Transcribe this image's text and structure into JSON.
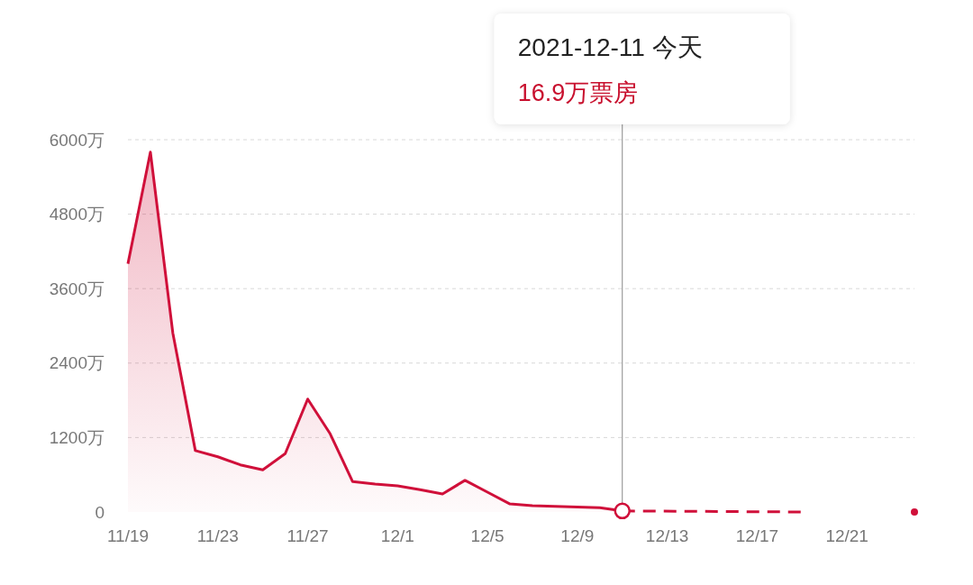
{
  "chart_data": {
    "type": "area",
    "x": [
      "2021-11-19",
      "2021-11-20",
      "2021-11-21",
      "2021-11-22",
      "2021-11-23",
      "2021-11-24",
      "2021-11-25",
      "2021-11-26",
      "2021-11-27",
      "2021-11-28",
      "2021-11-29",
      "2021-11-30",
      "2021-12-01",
      "2021-12-02",
      "2021-12-03",
      "2021-12-04",
      "2021-12-05",
      "2021-12-06",
      "2021-12-07",
      "2021-12-08",
      "2021-12-09",
      "2021-12-10",
      "2021-12-11"
    ],
    "series": [
      {
        "color": "#d0103a",
        "values": [
          4000,
          5800,
          2880,
          990,
          890,
          760,
          680,
          940,
          1820,
          1260,
          490,
          450,
          420,
          360,
          290,
          510,
          320,
          130,
          100,
          90,
          80,
          70,
          16.9
        ]
      },
      {
        "type": "line",
        "color": "#d0103a",
        "line_style": "dashed",
        "x": [
          "2021-12-11",
          "2021-12-19"
        ],
        "values": [
          16.9,
          0
        ]
      },
      {
        "type": "scatter",
        "color": "#d0103a",
        "marker": "circle",
        "x": [
          "2021-12-11"
        ],
        "values": [
          16.9
        ]
      },
      {
        "type": "scatter",
        "color": "#d0103a",
        "marker": "circle",
        "x": [
          "2021-12-24"
        ],
        "values": [
          0
        ]
      }
    ],
    "xlim": [
      "2021-11-19",
      "2021-12-24"
    ],
    "xticks": [
      {
        "value": "2021-11-19",
        "label": "11/19"
      },
      {
        "value": "2021-11-23",
        "label": "11/23"
      },
      {
        "value": "2021-11-27",
        "label": "11/27"
      },
      {
        "value": "2021-12-01",
        "label": "12/1"
      },
      {
        "value": "2021-12-05",
        "label": "12/5"
      },
      {
        "value": "2021-12-09",
        "label": "12/9"
      },
      {
        "value": "2021-12-13",
        "label": "12/13"
      },
      {
        "value": "2021-12-17",
        "label": "12/17"
      },
      {
        "value": "2021-12-21",
        "label": "12/21"
      }
    ],
    "ylim": [
      0,
      6000
    ],
    "yticks": [
      0,
      {
        "value": 1200,
        "label": "1200万"
      },
      {
        "value": 2400,
        "label": "2400万"
      },
      {
        "value": 3600,
        "label": "3600万"
      },
      {
        "value": 4800,
        "label": "4800万"
      },
      {
        "value": 6000,
        "label": "6000万"
      }
    ],
    "grid": "y",
    "ref_lines": [
      {
        "axis": "x",
        "value": "2021-12-11",
        "color": "#888888"
      }
    ],
    "annotations": [
      "2021-12-11  今天",
      "16.9万票房"
    ]
  }
}
